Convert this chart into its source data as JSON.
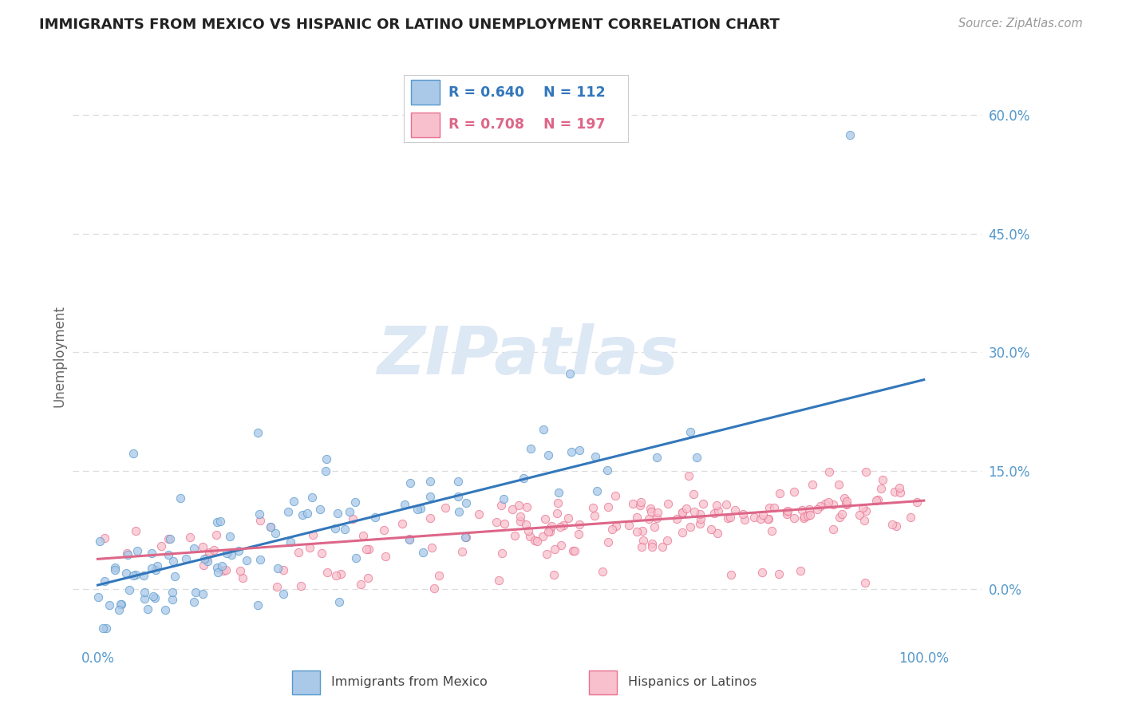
{
  "title": "IMMIGRANTS FROM MEXICO VS HISPANIC OR LATINO UNEMPLOYMENT CORRELATION CHART",
  "source": "Source: ZipAtlas.com",
  "ylabel": "Unemployment",
  "series1": {
    "name": "Immigrants from Mexico",
    "R": 0.64,
    "N": 112,
    "marker_facecolor": "#aac8e8",
    "marker_edgecolor": "#5599cc",
    "line_color": "#3377bb",
    "trend_x0": 0.0,
    "trend_y0": 0.005,
    "trend_x1": 1.0,
    "trend_y1": 0.265
  },
  "series2": {
    "name": "Hispanics or Latinos",
    "R": 0.708,
    "N": 197,
    "marker_facecolor": "#f8c0cc",
    "marker_edgecolor": "#e87090",
    "line_color": "#dd6688",
    "trend_x0": 0.0,
    "trend_y0": 0.038,
    "trend_x1": 1.0,
    "trend_y1": 0.112
  },
  "ytick_positions": [
    0.0,
    0.15,
    0.3,
    0.45,
    0.6
  ],
  "ytick_labels": [
    "0.0%",
    "15.0%",
    "30.0%",
    "45.0%",
    "60.0%"
  ],
  "xtick_positions": [
    0.0,
    1.0
  ],
  "xtick_labels": [
    "0.0%",
    "100.0%"
  ],
  "xlim": [
    -0.03,
    1.07
  ],
  "ylim": [
    -0.07,
    0.66
  ],
  "axis_color": "#5599cc",
  "grid_color": "#dddddd",
  "title_color": "#222222",
  "source_color": "#999999",
  "ylabel_color": "#666666",
  "watermark_text": "ZIPatlas",
  "watermark_color": "#dde8f5",
  "legend_R_color": "#3377bb",
  "legend_R2_color": "#dd6688",
  "background": "#ffffff"
}
